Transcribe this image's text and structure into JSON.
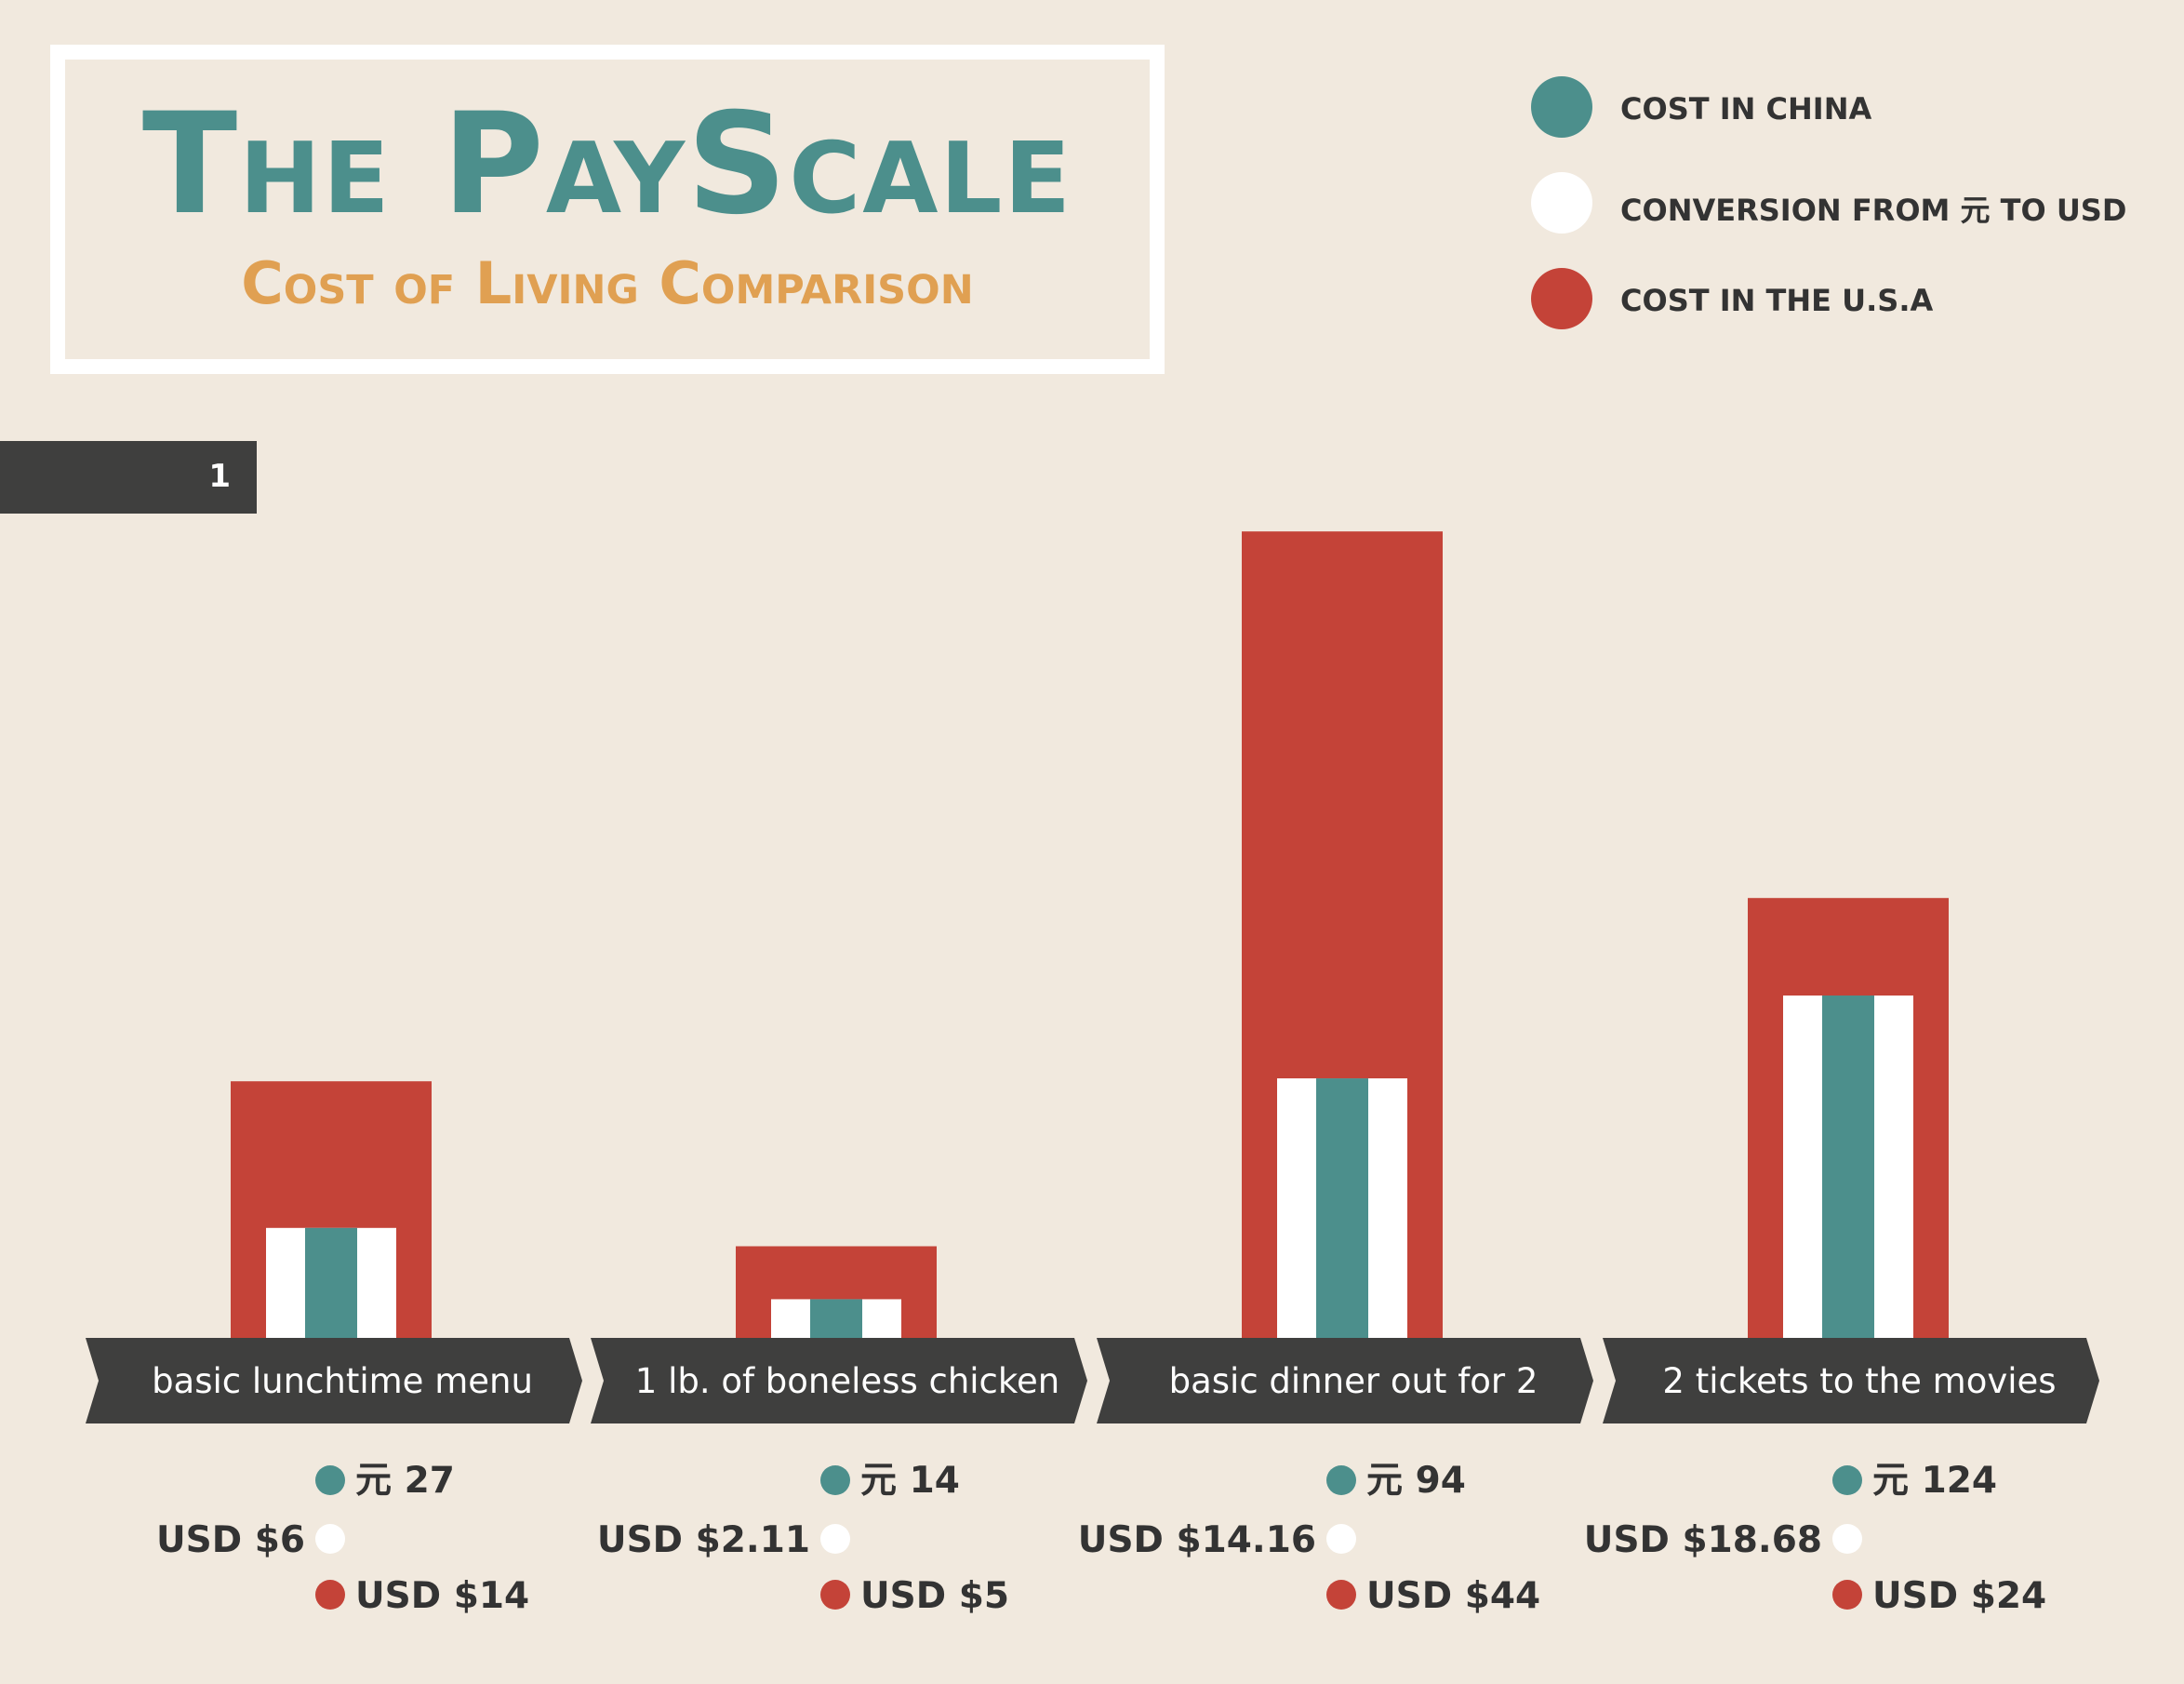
{
  "header": {
    "title": "The PayScale",
    "subtitle": "Cost of Living Comparison"
  },
  "legend": {
    "items": [
      {
        "label": "COST IN CHINA",
        "color": "#4c8f8c"
      },
      {
        "label": "CONVERSION FROM 元 TO USD",
        "color": "#ffffff"
      },
      {
        "label": "COST IN THE U.S.A",
        "color": "#c44338"
      }
    ]
  },
  "page_tab": {
    "number": "1"
  },
  "colors": {
    "china": "#4c8f8c",
    "conversion": "#ffffff",
    "usa": "#c44338",
    "arrow": "#3f3f3e",
    "background": "#f1e9de"
  },
  "chart_data": {
    "type": "bar",
    "categories": [
      "basic lunchtime menu",
      "1 lb. of boneless chicken",
      "basic dinner out for 2",
      "2 tickets to the movies"
    ],
    "series": [
      {
        "name": "COST IN CHINA",
        "values": [
          27,
          14,
          94,
          124
        ],
        "labels": [
          "元 27",
          "元 14",
          "元 94",
          "元 124"
        ]
      },
      {
        "name": "CONVERSION FROM 元 TO USD",
        "values": [
          6,
          2.11,
          14.16,
          18.68
        ],
        "labels": [
          "USD $6",
          "USD $2.11",
          "USD $14.16",
          "USD $18.68"
        ]
      },
      {
        "name": "COST IN THE U.S.A",
        "values": [
          14,
          5,
          44,
          24
        ],
        "labels": [
          "USD $14",
          "USD $5",
          "USD $44",
          "USD $24"
        ]
      }
    ],
    "legend_position": "top-right",
    "grid": false
  }
}
